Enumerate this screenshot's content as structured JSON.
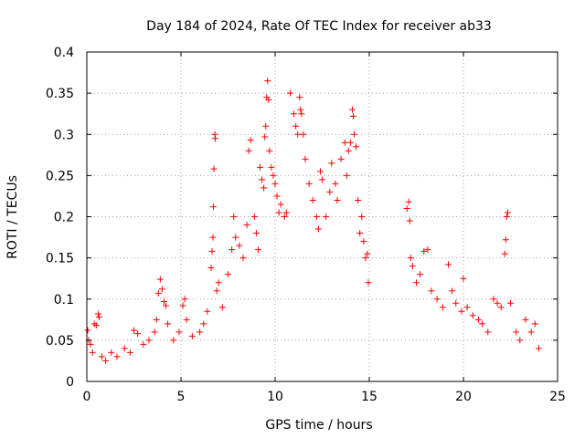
{
  "chart_data": {
    "type": "scatter",
    "title": "Day 184 of 2024, Rate Of TEC Index for receiver ab33",
    "xlabel": "GPS time / hours",
    "ylabel": "ROTI / TECUs",
    "xlim": [
      0,
      25
    ],
    "ylim": [
      0,
      0.4
    ],
    "x_ticks": [
      "0",
      "5",
      "10",
      "15",
      "20",
      "25"
    ],
    "y_ticks": [
      "0",
      "0.05",
      "0.1",
      "0.15",
      "0.2",
      "0.25",
      "0.3",
      "0.35",
      "0.4"
    ],
    "grid": true,
    "marker": "+",
    "color": "#ff0000",
    "series": [
      {
        "points": [
          [
            0.05,
            0.062
          ],
          [
            0.1,
            0.05
          ],
          [
            0.2,
            0.045
          ],
          [
            0.3,
            0.035
          ],
          [
            0.4,
            0.07
          ],
          [
            0.5,
            0.068
          ],
          [
            0.6,
            0.082
          ],
          [
            0.65,
            0.078
          ],
          [
            0.8,
            0.03
          ],
          [
            1.0,
            0.025
          ],
          [
            1.3,
            0.035
          ],
          [
            1.6,
            0.03
          ],
          [
            2.0,
            0.04
          ],
          [
            2.3,
            0.035
          ],
          [
            2.5,
            0.062
          ],
          [
            2.7,
            0.058
          ],
          [
            3.0,
            0.045
          ],
          [
            3.3,
            0.05
          ],
          [
            3.6,
            0.06
          ],
          [
            3.7,
            0.075
          ],
          [
            3.8,
            0.107
          ],
          [
            3.9,
            0.124
          ],
          [
            4.0,
            0.112
          ],
          [
            4.1,
            0.097
          ],
          [
            4.2,
            0.092
          ],
          [
            4.3,
            0.07
          ],
          [
            4.6,
            0.05
          ],
          [
            4.9,
            0.06
          ],
          [
            5.1,
            0.092
          ],
          [
            5.2,
            0.1
          ],
          [
            5.3,
            0.075
          ],
          [
            5.6,
            0.055
          ],
          [
            6.0,
            0.06
          ],
          [
            6.2,
            0.07
          ],
          [
            6.4,
            0.085
          ],
          [
            6.6,
            0.138
          ],
          [
            6.65,
            0.158
          ],
          [
            6.7,
            0.175
          ],
          [
            6.72,
            0.212
          ],
          [
            6.75,
            0.258
          ],
          [
            6.8,
            0.3
          ],
          [
            6.82,
            0.295
          ],
          [
            6.9,
            0.11
          ],
          [
            7.0,
            0.12
          ],
          [
            7.2,
            0.09
          ],
          [
            7.5,
            0.13
          ],
          [
            7.7,
            0.16
          ],
          [
            7.8,
            0.2
          ],
          [
            7.9,
            0.175
          ],
          [
            8.1,
            0.165
          ],
          [
            8.3,
            0.15
          ],
          [
            8.5,
            0.19
          ],
          [
            8.6,
            0.28
          ],
          [
            8.7,
            0.293
          ],
          [
            8.9,
            0.2
          ],
          [
            9.0,
            0.18
          ],
          [
            9.1,
            0.16
          ],
          [
            9.2,
            0.26
          ],
          [
            9.3,
            0.245
          ],
          [
            9.4,
            0.235
          ],
          [
            9.45,
            0.297
          ],
          [
            9.5,
            0.31
          ],
          [
            9.55,
            0.345
          ],
          [
            9.6,
            0.365
          ],
          [
            9.65,
            0.342
          ],
          [
            9.7,
            0.28
          ],
          [
            9.8,
            0.26
          ],
          [
            9.9,
            0.25
          ],
          [
            10.0,
            0.24
          ],
          [
            10.1,
            0.225
          ],
          [
            10.2,
            0.205
          ],
          [
            10.3,
            0.215
          ],
          [
            10.5,
            0.2
          ],
          [
            10.6,
            0.205
          ],
          [
            10.8,
            0.35
          ],
          [
            11.0,
            0.325
          ],
          [
            11.1,
            0.31
          ],
          [
            11.2,
            0.3
          ],
          [
            11.3,
            0.345
          ],
          [
            11.35,
            0.33
          ],
          [
            11.4,
            0.325
          ],
          [
            11.5,
            0.3
          ],
          [
            11.6,
            0.27
          ],
          [
            11.8,
            0.24
          ],
          [
            12.0,
            0.22
          ],
          [
            12.2,
            0.2
          ],
          [
            12.3,
            0.185
          ],
          [
            12.4,
            0.255
          ],
          [
            12.5,
            0.245
          ],
          [
            12.7,
            0.2
          ],
          [
            12.9,
            0.23
          ],
          [
            13.0,
            0.265
          ],
          [
            13.2,
            0.24
          ],
          [
            13.3,
            0.22
          ],
          [
            13.5,
            0.27
          ],
          [
            13.7,
            0.29
          ],
          [
            13.8,
            0.25
          ],
          [
            13.9,
            0.28
          ],
          [
            14.0,
            0.29
          ],
          [
            14.1,
            0.33
          ],
          [
            14.15,
            0.322
          ],
          [
            14.2,
            0.3
          ],
          [
            14.3,
            0.285
          ],
          [
            14.4,
            0.22
          ],
          [
            14.5,
            0.18
          ],
          [
            14.6,
            0.2
          ],
          [
            14.7,
            0.17
          ],
          [
            14.8,
            0.15
          ],
          [
            14.9,
            0.155
          ],
          [
            14.95,
            0.12
          ],
          [
            17.0,
            0.21
          ],
          [
            17.1,
            0.218
          ],
          [
            17.15,
            0.195
          ],
          [
            17.2,
            0.15
          ],
          [
            17.3,
            0.14
          ],
          [
            17.5,
            0.12
          ],
          [
            17.7,
            0.13
          ],
          [
            17.9,
            0.158
          ],
          [
            18.1,
            0.16
          ],
          [
            18.3,
            0.11
          ],
          [
            18.6,
            0.1
          ],
          [
            18.9,
            0.09
          ],
          [
            19.2,
            0.142
          ],
          [
            19.4,
            0.11
          ],
          [
            19.6,
            0.095
          ],
          [
            19.9,
            0.085
          ],
          [
            20.0,
            0.125
          ],
          [
            20.2,
            0.09
          ],
          [
            20.5,
            0.08
          ],
          [
            20.8,
            0.075
          ],
          [
            21.0,
            0.07
          ],
          [
            21.3,
            0.06
          ],
          [
            21.6,
            0.1
          ],
          [
            21.8,
            0.095
          ],
          [
            22.0,
            0.09
          ],
          [
            22.2,
            0.155
          ],
          [
            22.25,
            0.172
          ],
          [
            22.3,
            0.2
          ],
          [
            22.35,
            0.205
          ],
          [
            22.5,
            0.095
          ],
          [
            22.8,
            0.06
          ],
          [
            23.0,
            0.05
          ],
          [
            23.3,
            0.075
          ],
          [
            23.6,
            0.06
          ],
          [
            23.8,
            0.07
          ],
          [
            24.0,
            0.04
          ]
        ]
      }
    ]
  }
}
